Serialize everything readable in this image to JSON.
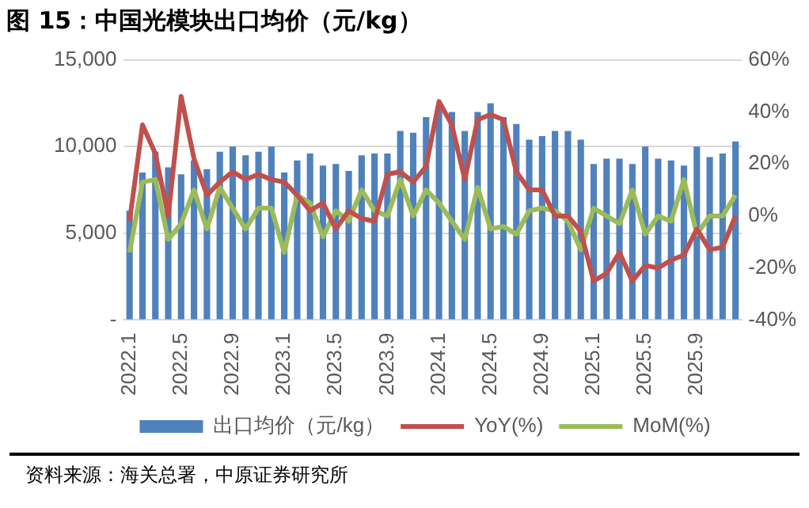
{
  "chart_data": {
    "type": "bar",
    "title": "图 15：中国光模块出口均价（元/kg）",
    "categories": [
      "2022.1",
      null,
      null,
      null,
      "2022.5",
      null,
      null,
      null,
      "2022.9",
      null,
      null,
      null,
      "2023.1",
      null,
      null,
      null,
      "2023.5",
      null,
      null,
      null,
      "2023.9",
      null,
      null,
      null,
      "2024.1",
      null,
      null,
      null,
      "2024.5",
      null,
      null,
      null,
      "2024.9",
      null,
      null,
      null,
      "2025.1",
      null,
      null,
      null,
      "2025.5",
      null,
      null,
      null,
      "2025.9",
      null,
      null,
      null
    ],
    "series": [
      {
        "name": "出口均价（元/kg）",
        "color": "#4f81bd",
        "values": [
          6300,
          8500,
          9700,
          8800,
          8400,
          9200,
          8700,
          9700,
          10000,
          9500,
          9700,
          10000,
          8500,
          9200,
          9600,
          8900,
          9000,
          8600,
          9500,
          9600,
          9600,
          10900,
          10800,
          11700,
          12200,
          12000,
          10900,
          12000,
          12500,
          11700,
          11300,
          10400,
          10600,
          10900,
          10900,
          10400,
          9000,
          9300,
          9300,
          9000,
          10000,
          9300,
          9200,
          8900,
          10000,
          9400,
          9600,
          10300
        ]
      },
      {
        "name": "YoY(%)",
        "type": "line",
        "axis": "y2",
        "color": "#c0504d",
        "values": [
          -2,
          35,
          24,
          0,
          46,
          22,
          8,
          13,
          17,
          14,
          16,
          14,
          13,
          8,
          2,
          5,
          -5,
          2,
          -1,
          -2,
          16,
          17,
          13,
          19,
          44,
          35,
          14,
          37,
          39,
          37,
          17,
          10,
          10,
          0,
          0,
          -6,
          -25,
          -22,
          -14,
          -25,
          -19,
          -20,
          -17,
          -15,
          -5,
          -13,
          -12,
          0
        ]
      },
      {
        "name": "MoM(%)",
        "type": "line",
        "axis": "y2",
        "color": "#9bbb59",
        "values": [
          -14,
          13,
          14,
          -9,
          -3,
          10,
          -5,
          11,
          3,
          -5,
          3,
          3,
          -14,
          8,
          5,
          -8,
          2,
          -2,
          10,
          2,
          0,
          14,
          0,
          10,
          5,
          -2,
          -9,
          11,
          -5,
          -4,
          -7,
          2,
          3,
          2,
          -2,
          -13,
          3,
          0,
          -3,
          10,
          -7,
          0,
          -2,
          14,
          -7,
          0,
          0,
          8
        ]
      }
    ],
    "ylim": [
      0,
      15000
    ],
    "yticks": [
      {
        "value": 0,
        "label": "-"
      },
      {
        "value": 5000,
        "label": "5,000"
      },
      {
        "value": 10000,
        "label": "10,000"
      },
      {
        "value": 15000,
        "label": "15,000"
      }
    ],
    "y2lim": [
      -40,
      60
    ],
    "y2ticks": [
      {
        "value": -40,
        "label": "-40%"
      },
      {
        "value": -20,
        "label": "-20%"
      },
      {
        "value": 0,
        "label": "0%"
      },
      {
        "value": 20,
        "label": "20%"
      },
      {
        "value": 40,
        "label": "40%"
      },
      {
        "value": 60,
        "label": "60%"
      }
    ],
    "grid": "y",
    "legend": "bottom",
    "marker": "none",
    "line_style": "solid",
    "annotations": [
      "资料来源：海关总署，中原证券研究所"
    ]
  }
}
